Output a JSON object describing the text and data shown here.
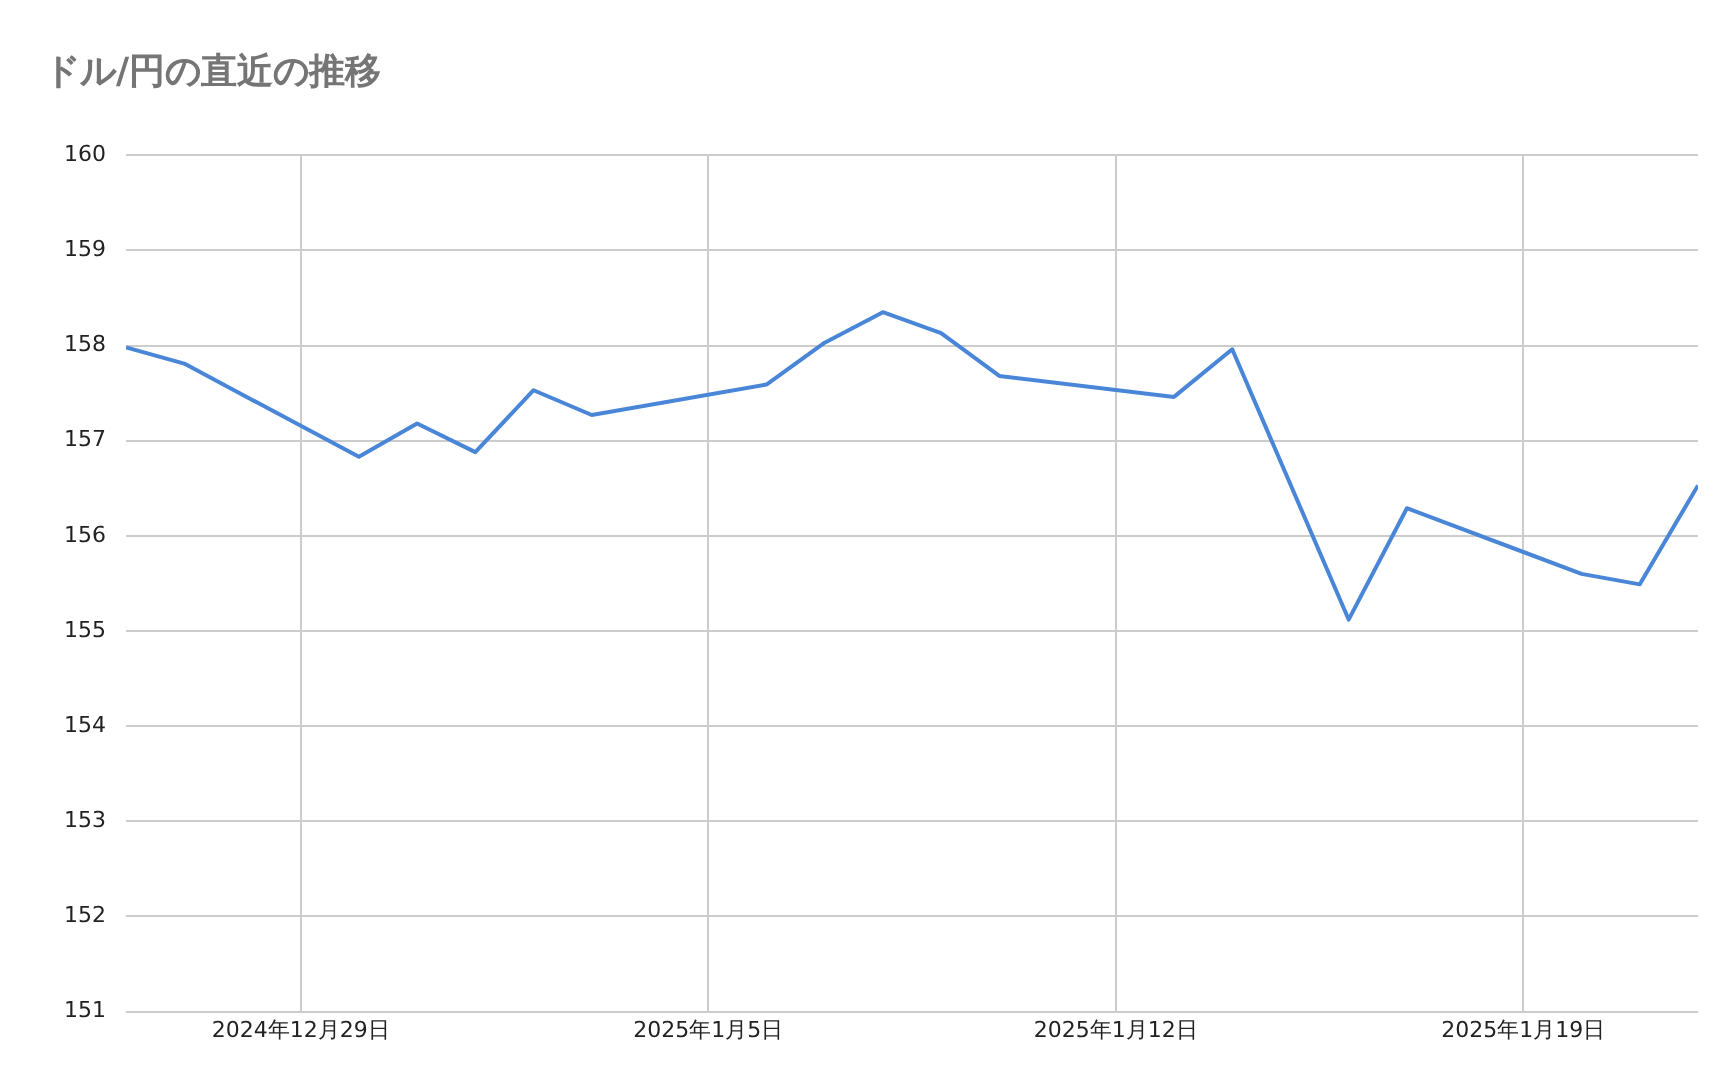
{
  "chart_data": {
    "type": "line",
    "title": "ドル/円の直近の推移",
    "x": [
      "2024-12-26",
      "2024-12-27",
      "2024-12-30",
      "2024-12-31",
      "2025-01-01",
      "2025-01-02",
      "2025-01-03",
      "2025-01-06",
      "2025-01-07",
      "2025-01-08",
      "2025-01-09",
      "2025-01-10",
      "2025-01-13",
      "2025-01-14",
      "2025-01-16",
      "2025-01-17",
      "2025-01-20",
      "2025-01-21",
      "2025-01-22"
    ],
    "series": [
      {
        "color": "#4a86d8",
        "values": [
          157.98,
          157.81,
          156.83,
          157.18,
          156.88,
          157.53,
          157.27,
          157.59,
          158.03,
          158.35,
          158.13,
          157.68,
          157.46,
          157.96,
          155.12,
          156.29,
          155.6,
          155.49,
          156.53
        ]
      }
    ],
    "xlim": [
      "2024-12-26",
      "2025-01-22"
    ],
    "xticks": [
      {
        "value": "2024-12-29",
        "label": "2024年12月29日"
      },
      {
        "value": "2025-01-05",
        "label": "2025年1月5日"
      },
      {
        "value": "2025-01-12",
        "label": "2025年1月12日"
      },
      {
        "value": "2025-01-19",
        "label": "2025年1月19日"
      }
    ],
    "ylim": [
      151,
      160
    ],
    "yticks": [
      151,
      152,
      153,
      154,
      155,
      156,
      157,
      158,
      159,
      160
    ],
    "grid": true,
    "legend": false,
    "marker": "none",
    "line_style": "solid"
  }
}
